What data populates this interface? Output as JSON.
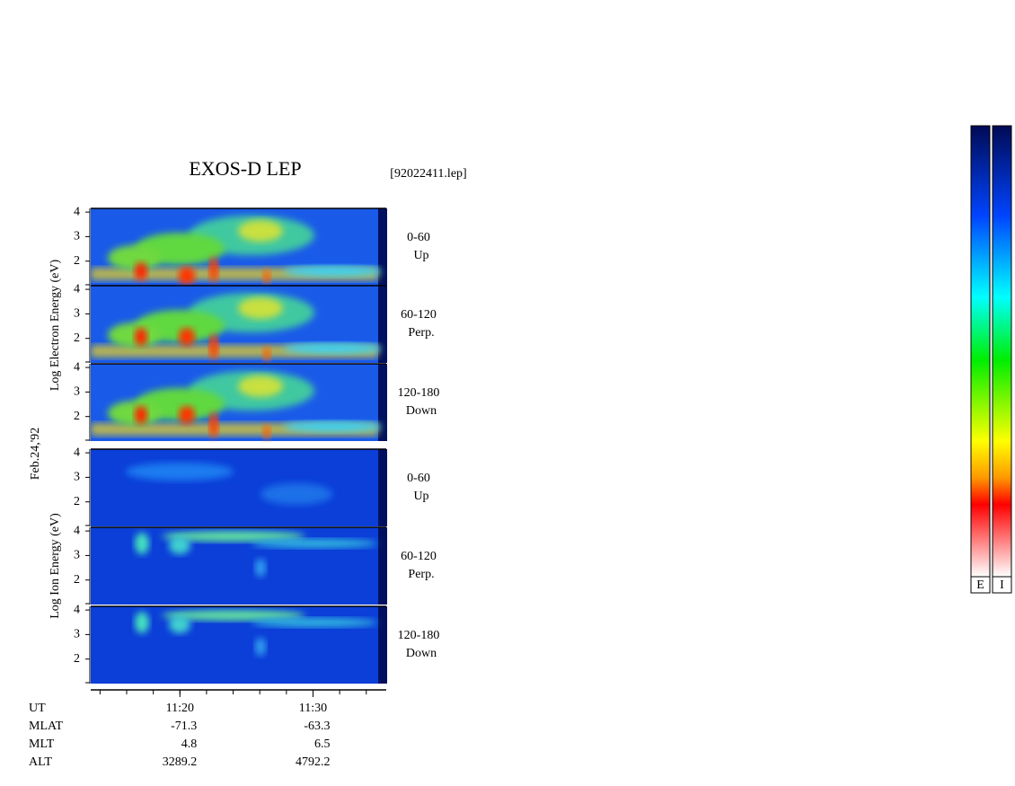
{
  "chart_data": {
    "type": "spectrogram",
    "title": "EXOS-D LEP",
    "file": "[92022411.lep]",
    "date": "Feb.24,'92",
    "ylim": [
      1,
      4.15
    ],
    "yticks": [
      2,
      3,
      4
    ],
    "xlim": [
      13.3,
      35.5
    ],
    "xticks": [
      {
        "value": 20,
        "label": "11:20"
      },
      {
        "value": 30,
        "label": "11:30"
      }
    ],
    "groups": [
      {
        "ylabel": "Log  Electron  Energy (eV)",
        "species": "electron",
        "panels": [
          {
            "angle": "0-60",
            "direction": "Up"
          },
          {
            "angle": "60-120",
            "direction": "Perp."
          },
          {
            "angle": "120-180",
            "direction": "Down"
          }
        ]
      },
      {
        "ylabel": "Log  Ion  Energy (eV)",
        "species": "ion",
        "panels": [
          {
            "angle": "0-60",
            "direction": "Up"
          },
          {
            "angle": "60-120",
            "direction": "Perp."
          },
          {
            "angle": "120-180",
            "direction": "Down"
          }
        ]
      }
    ],
    "table": [
      {
        "name": "UT",
        "values": []
      },
      {
        "name": "MLAT",
        "values": [
          -71.3,
          -63.3
        ]
      },
      {
        "name": "MLT",
        "values": [
          4.8,
          6.5
        ]
      },
      {
        "name": "ALT",
        "values": [
          3289.2,
          4792.2
        ]
      }
    ],
    "colorbars": [
      "E",
      "I"
    ]
  }
}
